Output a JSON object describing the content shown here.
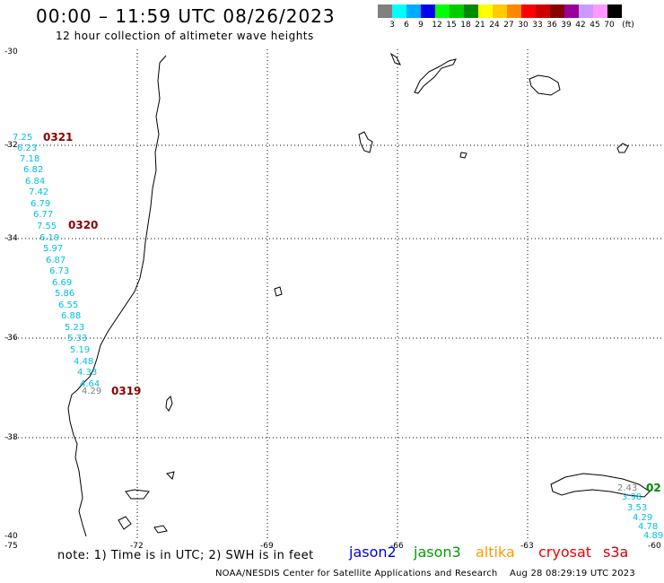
{
  "header": {
    "title": "00:00 – 11:59 UTC 08/26/2023",
    "subtitle": "12 hour collection of altimeter wave heights"
  },
  "legend": {
    "unit": "(ft)",
    "items": [
      {
        "label": "",
        "color": "#808080"
      },
      {
        "label": "3",
        "color": "#00ffff"
      },
      {
        "label": "6",
        "color": "#00aaff"
      },
      {
        "label": "9",
        "color": "#0000ee"
      },
      {
        "label": "12",
        "color": "#00ff00"
      },
      {
        "label": "15",
        "color": "#00cc00"
      },
      {
        "label": "18",
        "color": "#008800"
      },
      {
        "label": "21",
        "color": "#ffff00"
      },
      {
        "label": "24",
        "color": "#ffcc00"
      },
      {
        "label": "27",
        "color": "#ff8800"
      },
      {
        "label": "30",
        "color": "#ff0000"
      },
      {
        "label": "33",
        "color": "#cc0000"
      },
      {
        "label": "36",
        "color": "#880000"
      },
      {
        "label": "39",
        "color": "#990099"
      },
      {
        "label": "42",
        "color": "#cc99ff"
      },
      {
        "label": "45",
        "color": "#ff99ff"
      },
      {
        "label": "70",
        "color": "#000000"
      }
    ]
  },
  "map": {
    "lat_labels": [
      "-30",
      "-32",
      "-34",
      "-36",
      "-38",
      "-40"
    ],
    "lon_labels": [
      "-75",
      "-72",
      "-69",
      "-66",
      "-63",
      "-60"
    ]
  },
  "tracks": [
    {
      "name": "0321",
      "color": "#8b0000"
    },
    {
      "name": "0320",
      "color": "#8b0000"
    },
    {
      "name": "0319",
      "color": "#8b0000"
    },
    {
      "name": "02",
      "color": "#008800"
    }
  ],
  "wave_heights_left": [
    "7.25",
    "6.23",
    "7.18",
    "6.82",
    "6.84",
    "7.42",
    "6.79",
    "6.77",
    "7.55",
    "6.19",
    "5.97",
    "6.87",
    "6.73",
    "6.69",
    "5.86",
    "6.55",
    "6.88",
    "5.23",
    "5.33",
    "5.19",
    "4.48",
    "4.33",
    "4.64",
    "4.29"
  ],
  "wave_heights_right": [
    "2.43",
    "3.98",
    "3.53",
    "4.29",
    "4.78",
    "4.89"
  ],
  "footer": {
    "note": "note:  1) Time is in UTC;  2) SWH is in feet",
    "satellites": [
      {
        "label": "jason2",
        "color": "#0000dd"
      },
      {
        "label": "jason3",
        "color": "#009900"
      },
      {
        "label": "altika",
        "color": "#ff9900"
      },
      {
        "label": "cryosat",
        "color": "#ee0000"
      },
      {
        "label": "s3a",
        "color": "#cc0000"
      }
    ],
    "credit": "NOAA/NESDIS Center for Satellite Applications and Research    Aug 28 08:29:19 UTC 2023"
  }
}
